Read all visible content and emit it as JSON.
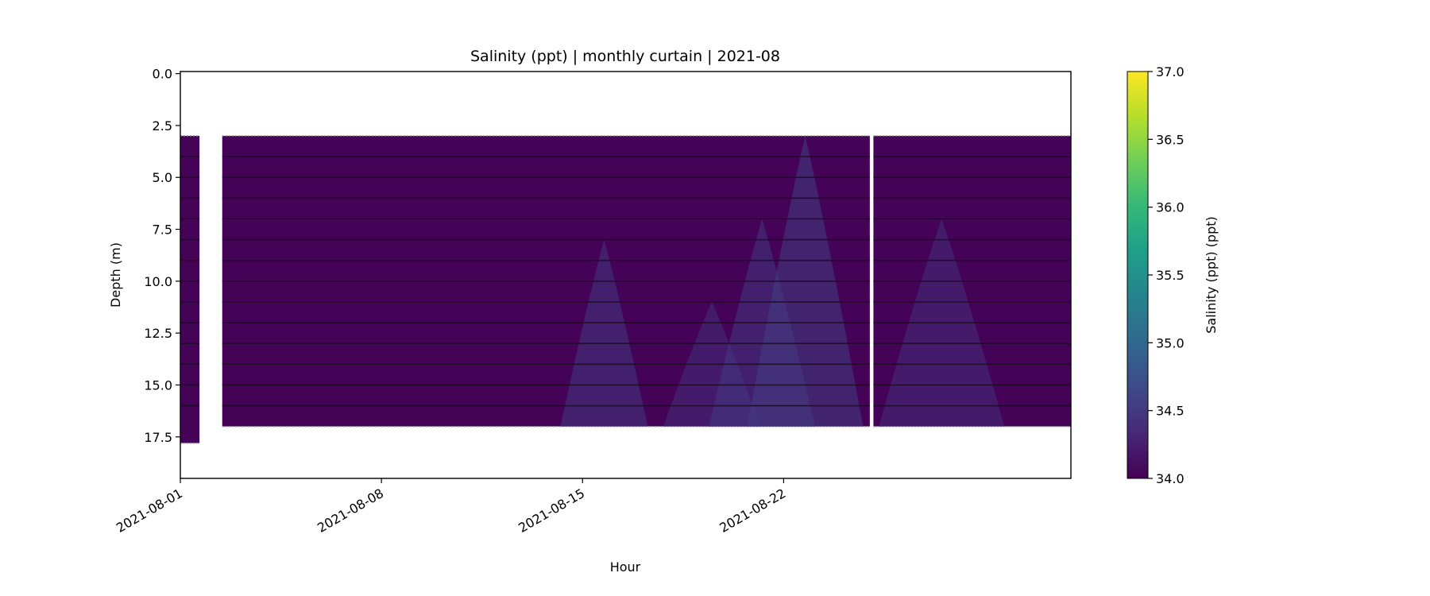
{
  "chart_data": {
    "type": "heatmap",
    "title": "Salinity (ppt) | monthly curtain | 2021-08",
    "xlabel": "Hour",
    "ylabel": "Depth (m)",
    "colorbar_label": "Salinity (ppt) (ppt)",
    "colormap": "viridis",
    "colormap_stops": [
      "#440154",
      "#482878",
      "#3e4a89",
      "#31688e",
      "#26828e",
      "#1f9e89",
      "#35b779",
      "#6ece58",
      "#b5de2b",
      "#fde725"
    ],
    "clim": [
      34.0,
      37.0
    ],
    "x_range": [
      "2021-08-01",
      "2021-09-01"
    ],
    "x_ticks": [
      "2021-08-01",
      "2021-08-08",
      "2021-08-15",
      "2021-08-22"
    ],
    "ylim": [
      19.5,
      -0.1
    ],
    "y_inverted": true,
    "y_ticks": [
      0.0,
      2.5,
      5.0,
      7.5,
      10.0,
      12.5,
      15.0,
      17.5
    ],
    "y_tick_labels": [
      "0.0",
      "2.5",
      "5.0",
      "7.5",
      "10.0",
      "12.5",
      "15.0",
      "17.5"
    ],
    "colorbar_ticks": [
      34.0,
      34.5,
      35.0,
      35.5,
      36.0,
      36.5,
      37.0
    ],
    "colorbar_tick_labels": [
      "34.0",
      "34.5",
      "35.0",
      "35.5",
      "36.0",
      "36.5",
      "37.0"
    ],
    "data_segments": [
      {
        "start": "2021-08-01",
        "end": "2021-08-01T16:00",
        "top_depth": 3.0,
        "bottom_depth": 17.8
      },
      {
        "start": "2021-08-02T11:00",
        "end": "2021-08-25T00:00",
        "top_depth": 3.0,
        "bottom_depth": 17.0
      },
      {
        "start": "2021-08-25T03:00",
        "end": "2021-09-01",
        "top_depth": 3.0,
        "bottom_depth": 17.0
      }
    ],
    "sensor_depths": [
      4.0,
      5.0,
      6.0,
      7.0,
      8.0,
      9.0,
      10.0,
      11.0,
      12.0,
      13.0,
      14.0,
      15.0,
      16.0
    ],
    "salinity_patches": [
      {
        "center": "2021-08-15T18:00",
        "top_depth": 8.0,
        "value": 34.5
      },
      {
        "center": "2021-08-19T12:00",
        "top_depth": 11.0,
        "value": 34.4
      },
      {
        "center": "2021-08-21T06:00",
        "top_depth": 7.0,
        "value": 34.5
      },
      {
        "center": "2021-08-22T18:00",
        "top_depth": 3.0,
        "value": 34.55
      },
      {
        "center": "2021-08-27T12:00",
        "top_depth": 7.0,
        "value": 34.4
      }
    ]
  }
}
